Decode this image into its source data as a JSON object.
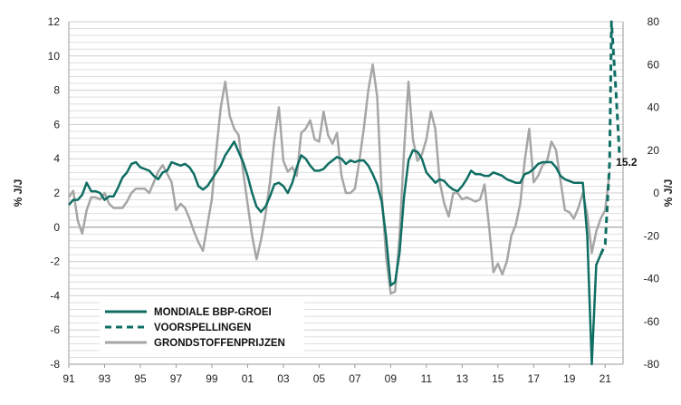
{
  "chart_data": {
    "type": "line",
    "y_left_label": "% J/J",
    "y_right_label": "% J/J",
    "y_left_range": [
      -8,
      12
    ],
    "y_right_range": [
      -80,
      80
    ],
    "y_left_ticks": [
      -8,
      -6,
      -4,
      -2,
      0,
      2,
      4,
      6,
      8,
      10,
      12
    ],
    "y_right_ticks": [
      -80,
      -60,
      -40,
      -20,
      0,
      20,
      40,
      60,
      80
    ],
    "x_range": [
      1991,
      2022
    ],
    "x_ticks": [
      {
        "value": 1991,
        "label": "91"
      },
      {
        "value": 1993,
        "label": "93"
      },
      {
        "value": 1995,
        "label": "95"
      },
      {
        "value": 1997,
        "label": "97"
      },
      {
        "value": 1999,
        "label": "99"
      },
      {
        "value": 2001,
        "label": "01"
      },
      {
        "value": 2003,
        "label": "03"
      },
      {
        "value": 2005,
        "label": "05"
      },
      {
        "value": 2007,
        "label": "07"
      },
      {
        "value": 2009,
        "label": "09"
      },
      {
        "value": 2011,
        "label": "11"
      },
      {
        "value": 2013,
        "label": "13"
      },
      {
        "value": 2015,
        "label": "15"
      },
      {
        "value": 2017,
        "label": "17"
      },
      {
        "value": 2019,
        "label": "19"
      },
      {
        "value": 2021,
        "label": "21"
      }
    ],
    "grid": true,
    "annotation": {
      "text": "15.2",
      "x": 2021.4,
      "y": 3.8
    },
    "series": [
      {
        "name": "MONDIALE BBP-GROEI",
        "axis": "left",
        "color": "#0f6e63",
        "style": "solid",
        "points": [
          [
            1991.0,
            1.3
          ],
          [
            1991.25,
            1.6
          ],
          [
            1991.5,
            1.6
          ],
          [
            1991.75,
            1.9
          ],
          [
            1992.0,
            2.6
          ],
          [
            1992.25,
            2.1
          ],
          [
            1992.5,
            2.1
          ],
          [
            1992.75,
            2.0
          ],
          [
            1993.0,
            1.6
          ],
          [
            1993.25,
            1.8
          ],
          [
            1993.5,
            1.8
          ],
          [
            1993.75,
            2.3
          ],
          [
            1994.0,
            2.9
          ],
          [
            1994.25,
            3.2
          ],
          [
            1994.5,
            3.7
          ],
          [
            1994.75,
            3.8
          ],
          [
            1995.0,
            3.5
          ],
          [
            1995.25,
            3.4
          ],
          [
            1995.5,
            3.3
          ],
          [
            1995.75,
            3.0
          ],
          [
            1996.0,
            2.8
          ],
          [
            1996.25,
            3.2
          ],
          [
            1996.5,
            3.3
          ],
          [
            1996.75,
            3.8
          ],
          [
            1997.0,
            3.7
          ],
          [
            1997.25,
            3.6
          ],
          [
            1997.5,
            3.7
          ],
          [
            1997.75,
            3.5
          ],
          [
            1998.0,
            3.1
          ],
          [
            1998.25,
            2.4
          ],
          [
            1998.5,
            2.2
          ],
          [
            1998.75,
            2.4
          ],
          [
            1999.0,
            2.8
          ],
          [
            1999.25,
            3.2
          ],
          [
            1999.5,
            3.6
          ],
          [
            1999.75,
            4.2
          ],
          [
            2000.0,
            4.6
          ],
          [
            2000.25,
            5.0
          ],
          [
            2000.5,
            4.4
          ],
          [
            2000.75,
            3.8
          ],
          [
            2001.0,
            3.0
          ],
          [
            2001.25,
            2.0
          ],
          [
            2001.5,
            1.2
          ],
          [
            2001.75,
            0.9
          ],
          [
            2002.0,
            1.2
          ],
          [
            2002.25,
            1.8
          ],
          [
            2002.5,
            2.5
          ],
          [
            2002.75,
            2.6
          ],
          [
            2003.0,
            2.4
          ],
          [
            2003.25,
            2.0
          ],
          [
            2003.5,
            2.6
          ],
          [
            2003.75,
            3.5
          ],
          [
            2004.0,
            4.2
          ],
          [
            2004.25,
            4.0
          ],
          [
            2004.5,
            3.6
          ],
          [
            2004.75,
            3.3
          ],
          [
            2005.0,
            3.3
          ],
          [
            2005.25,
            3.4
          ],
          [
            2005.5,
            3.7
          ],
          [
            2005.75,
            3.9
          ],
          [
            2006.0,
            4.1
          ],
          [
            2006.25,
            4.0
          ],
          [
            2006.5,
            3.7
          ],
          [
            2006.75,
            3.9
          ],
          [
            2007.0,
            3.8
          ],
          [
            2007.25,
            3.9
          ],
          [
            2007.5,
            3.9
          ],
          [
            2007.75,
            3.6
          ],
          [
            2008.0,
            3.1
          ],
          [
            2008.25,
            2.5
          ],
          [
            2008.5,
            1.5
          ],
          [
            2008.75,
            -0.6
          ],
          [
            2009.0,
            -3.4
          ],
          [
            2009.25,
            -3.2
          ],
          [
            2009.5,
            -1.5
          ],
          [
            2009.75,
            1.8
          ],
          [
            2010.0,
            3.9
          ],
          [
            2010.25,
            4.5
          ],
          [
            2010.5,
            4.4
          ],
          [
            2010.75,
            4.0
          ],
          [
            2011.0,
            3.2
          ],
          [
            2011.25,
            2.9
          ],
          [
            2011.5,
            2.6
          ],
          [
            2011.75,
            2.8
          ],
          [
            2012.0,
            2.7
          ],
          [
            2012.25,
            2.4
          ],
          [
            2012.5,
            2.2
          ],
          [
            2012.75,
            2.1
          ],
          [
            2013.0,
            2.4
          ],
          [
            2013.25,
            2.8
          ],
          [
            2013.5,
            3.3
          ],
          [
            2013.75,
            3.1
          ],
          [
            2014.0,
            3.1
          ],
          [
            2014.25,
            3.0
          ],
          [
            2014.5,
            3.0
          ],
          [
            2014.75,
            3.2
          ],
          [
            2015.0,
            3.1
          ],
          [
            2015.25,
            3.0
          ],
          [
            2015.5,
            2.8
          ],
          [
            2015.75,
            2.7
          ],
          [
            2016.0,
            2.6
          ],
          [
            2016.25,
            2.6
          ],
          [
            2016.5,
            3.1
          ],
          [
            2016.75,
            3.2
          ],
          [
            2017.0,
            3.4
          ],
          [
            2017.25,
            3.7
          ],
          [
            2017.5,
            3.8
          ],
          [
            2017.75,
            3.8
          ],
          [
            2018.0,
            3.8
          ],
          [
            2018.25,
            3.5
          ],
          [
            2018.5,
            3.0
          ],
          [
            2018.75,
            2.8
          ],
          [
            2019.0,
            2.7
          ],
          [
            2019.25,
            2.6
          ],
          [
            2019.5,
            2.6
          ],
          [
            2019.75,
            2.6
          ],
          [
            2020.0,
            -0.5
          ],
          [
            2020.25,
            -8.0
          ],
          [
            2020.5,
            -2.2
          ],
          [
            2020.75,
            -1.6
          ]
        ]
      },
      {
        "name": "VOORSPELLINGEN",
        "axis": "left",
        "color": "#0f6e63",
        "style": "dashed",
        "points": [
          [
            2020.75,
            -1.6
          ],
          [
            2021.0,
            -1.0
          ],
          [
            2021.25,
            3.8
          ],
          [
            2021.35,
            12.0
          ],
          [
            2021.6,
            8.0
          ],
          [
            2021.8,
            4.2
          ]
        ]
      },
      {
        "name": "GRONDSTOFFENPRIJZEN",
        "axis": "right",
        "color": "#a6a6a6",
        "style": "solid",
        "points": [
          [
            1991.0,
            -2
          ],
          [
            1991.25,
            1
          ],
          [
            1991.5,
            -13
          ],
          [
            1991.75,
            -19
          ],
          [
            1992.0,
            -8
          ],
          [
            1992.25,
            -2
          ],
          [
            1992.5,
            -2
          ],
          [
            1992.75,
            -3
          ],
          [
            1993.0,
            0
          ],
          [
            1993.25,
            -5
          ],
          [
            1993.5,
            -7
          ],
          [
            1993.75,
            -7
          ],
          [
            1994.0,
            -7
          ],
          [
            1994.25,
            -4
          ],
          [
            1994.5,
            0
          ],
          [
            1994.75,
            2
          ],
          [
            1995.0,
            2
          ],
          [
            1995.25,
            2
          ],
          [
            1995.5,
            0
          ],
          [
            1995.75,
            5
          ],
          [
            1996.0,
            10
          ],
          [
            1996.25,
            13
          ],
          [
            1996.5,
            9
          ],
          [
            1996.75,
            5
          ],
          [
            1997.0,
            -8
          ],
          [
            1997.25,
            -5
          ],
          [
            1997.5,
            -7
          ],
          [
            1997.75,
            -12
          ],
          [
            1998.0,
            -18
          ],
          [
            1998.25,
            -23
          ],
          [
            1998.5,
            -27
          ],
          [
            1998.75,
            -15
          ],
          [
            1999.0,
            -3
          ],
          [
            1999.25,
            20
          ],
          [
            1999.5,
            40
          ],
          [
            1999.75,
            52
          ],
          [
            2000.0,
            36
          ],
          [
            2000.25,
            30
          ],
          [
            2000.5,
            27
          ],
          [
            2000.75,
            10
          ],
          [
            2001.0,
            -5
          ],
          [
            2001.25,
            -20
          ],
          [
            2001.5,
            -31
          ],
          [
            2001.75,
            -22
          ],
          [
            2002.0,
            -10
          ],
          [
            2002.25,
            5
          ],
          [
            2002.5,
            25
          ],
          [
            2002.75,
            40
          ],
          [
            2003.0,
            15
          ],
          [
            2003.25,
            10
          ],
          [
            2003.5,
            12
          ],
          [
            2003.75,
            8
          ],
          [
            2004.0,
            28
          ],
          [
            2004.25,
            30
          ],
          [
            2004.5,
            34
          ],
          [
            2004.75,
            25
          ],
          [
            2005.0,
            24
          ],
          [
            2005.25,
            38
          ],
          [
            2005.5,
            27
          ],
          [
            2005.75,
            23
          ],
          [
            2006.0,
            28
          ],
          [
            2006.25,
            8
          ],
          [
            2006.5,
            0
          ],
          [
            2006.75,
            0
          ],
          [
            2007.0,
            2
          ],
          [
            2007.25,
            15
          ],
          [
            2007.5,
            30
          ],
          [
            2007.75,
            48
          ],
          [
            2008.0,
            60
          ],
          [
            2008.25,
            45
          ],
          [
            2008.5,
            0
          ],
          [
            2008.75,
            -30
          ],
          [
            2009.0,
            -47
          ],
          [
            2009.25,
            -46
          ],
          [
            2009.5,
            -20
          ],
          [
            2009.75,
            20
          ],
          [
            2010.0,
            52
          ],
          [
            2010.25,
            25
          ],
          [
            2010.5,
            15
          ],
          [
            2010.75,
            18
          ],
          [
            2011.0,
            25
          ],
          [
            2011.25,
            38
          ],
          [
            2011.5,
            30
          ],
          [
            2011.75,
            5
          ],
          [
            2012.0,
            -5
          ],
          [
            2012.25,
            -11
          ],
          [
            2012.5,
            0
          ],
          [
            2012.75,
            0
          ],
          [
            2013.0,
            -3
          ],
          [
            2013.25,
            -2
          ],
          [
            2013.5,
            -3
          ],
          [
            2013.75,
            -4
          ],
          [
            2014.0,
            -3
          ],
          [
            2014.25,
            4
          ],
          [
            2014.5,
            -15
          ],
          [
            2014.75,
            -37
          ],
          [
            2015.0,
            -33
          ],
          [
            2015.25,
            -38
          ],
          [
            2015.5,
            -32
          ],
          [
            2015.75,
            -20
          ],
          [
            2016.0,
            -15
          ],
          [
            2016.25,
            -5
          ],
          [
            2016.5,
            15
          ],
          [
            2016.75,
            30
          ],
          [
            2017.0,
            5
          ],
          [
            2017.25,
            8
          ],
          [
            2017.5,
            13
          ],
          [
            2017.75,
            15
          ],
          [
            2018.0,
            24
          ],
          [
            2018.25,
            20
          ],
          [
            2018.5,
            6
          ],
          [
            2018.75,
            -8
          ],
          [
            2019.0,
            -9
          ],
          [
            2019.25,
            -12
          ],
          [
            2019.5,
            -7
          ],
          [
            2019.75,
            0
          ],
          [
            2020.0,
            -10
          ],
          [
            2020.25,
            -28
          ],
          [
            2020.5,
            -18
          ],
          [
            2020.75,
            -12
          ],
          [
            2021.0,
            -8
          ],
          [
            2021.25,
            10
          ]
        ]
      }
    ]
  }
}
